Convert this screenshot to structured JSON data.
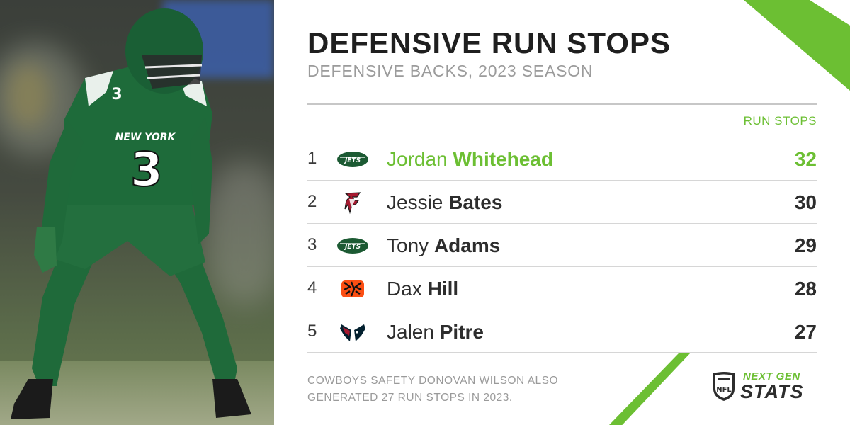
{
  "header": {
    "title": "DEFENSIVE RUN STOPS",
    "subtitle": "DEFENSIVE BACKS, 2023 SEASON"
  },
  "photo": {
    "jersey_number": "3",
    "jersey_text": "NEW YORK",
    "team_color": "#1c5a33"
  },
  "table": {
    "column_header": "RUN STOPS",
    "rows": [
      {
        "rank": "1",
        "team_logo": "jets-logo",
        "first_name": "Jordan",
        "last_name": "Whitehead",
        "value": "32"
      },
      {
        "rank": "2",
        "team_logo": "falcons-logo",
        "first_name": "Jessie",
        "last_name": "Bates",
        "value": "30"
      },
      {
        "rank": "3",
        "team_logo": "jets-logo",
        "first_name": "Tony",
        "last_name": "Adams",
        "value": "29"
      },
      {
        "rank": "4",
        "team_logo": "bengals-logo",
        "first_name": "Dax",
        "last_name": "Hill",
        "value": "28"
      },
      {
        "rank": "5",
        "team_logo": "texans-logo",
        "first_name": "Jalen",
        "last_name": "Pitre",
        "value": "27"
      }
    ]
  },
  "footnote": {
    "line1": "COWBOYS SAFETY DONOVAN WILSON ALSO",
    "line2": "GENERATED 27 RUN STOPS IN 2023."
  },
  "brand": {
    "shield_text": "NFL",
    "line1": "NEXT GEN",
    "line2": "STATS"
  },
  "colors": {
    "accent": "#6cbf33",
    "text": "#2d2d2d",
    "muted": "#9b9b9b"
  }
}
